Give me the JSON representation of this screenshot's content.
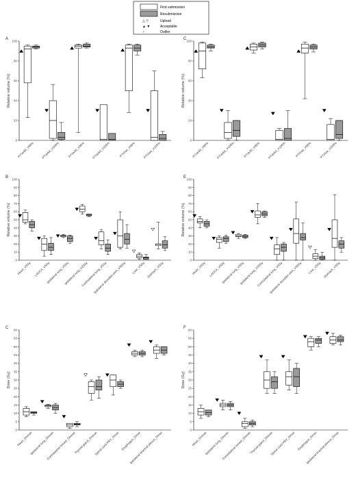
{
  "legend": {
    "items": [
      {
        "key": "first",
        "label": "First submission"
      },
      {
        "key": "resub",
        "label": "Resubmission"
      },
      {
        "key": "upload",
        "label": "Upload",
        "symbol": "△ ▽"
      },
      {
        "key": "accept",
        "label": "Acceptable",
        "symbol": "▲ ▼"
      },
      {
        "key": "outlier",
        "label": "Outlier",
        "symbol": "○"
      }
    ]
  },
  "colors": {
    "first": "#ffffff",
    "resub": "#9a9a9a",
    "stroke": "#000000"
  },
  "chart_data": [
    {
      "panel_label": "A",
      "type": "box",
      "ylabel": "Relative volume (%)",
      "ylim": [
        0,
        100
      ],
      "yticks": [
        0,
        20,
        40,
        60,
        80,
        100
      ],
      "categories": [
        "PTVe66_V95%",
        "PTVe66_V105%",
        "PTVe50_V95%",
        "PTVe50_V105%",
        "PTVtoe_V95%",
        "PTVtoe_V105%"
      ],
      "series": [
        {
          "key": "first",
          "boxes": [
            [
              23,
              58,
              92,
              95,
              96
            ],
            [
              0,
              2,
              20,
              40,
              56
            ],
            [
              8,
              93,
              95,
              96,
              97
            ],
            [
              0,
              0,
              1,
              36,
              36
            ],
            [
              28,
              50,
              93,
              96,
              97
            ],
            [
              0,
              0,
              3,
              50,
              70
            ]
          ]
        },
        {
          "key": "resub",
          "boxes": [
            [
              92,
              93,
              94,
              95,
              96
            ],
            [
              0,
              1,
              3,
              8,
              18
            ],
            [
              93,
              94,
              95,
              97,
              98
            ],
            [
              0,
              0,
              1,
              7,
              7
            ],
            [
              86,
              90,
              93,
              96,
              97
            ],
            [
              0,
              0,
              2,
              6,
              9
            ]
          ]
        }
      ],
      "markers": [
        {
          "cat": 0,
          "type": "accept-up",
          "y": 90
        },
        {
          "cat": 1,
          "type": "accept-down",
          "y": 30
        },
        {
          "cat": 2,
          "type": "accept-up",
          "y": 93
        },
        {
          "cat": 3,
          "type": "accept-down",
          "y": 30
        },
        {
          "cat": 4,
          "type": "accept-up",
          "y": 91
        },
        {
          "cat": 5,
          "type": "accept-down",
          "y": 30
        }
      ]
    },
    {
      "panel_label": "C",
      "type": "box",
      "ylabel": "Relative volume (%)",
      "ylim": [
        0,
        100
      ],
      "yticks": [
        0,
        20,
        40,
        60,
        80,
        100
      ],
      "categories": [
        "PTVe66_V95%",
        "PTVe66_V105%",
        "PTVe50_V95%",
        "PTVe50_V105%",
        "PTVtoe_V95%",
        "PTVtoe_V105%"
      ],
      "series": [
        {
          "key": "first",
          "boxes": [
            [
              63,
              72,
              90,
              98,
              99
            ],
            [
              0,
              2,
              8,
              18,
              30
            ],
            [
              88,
              91,
              94,
              97,
              98
            ],
            [
              0,
              0,
              1,
              10,
              12
            ],
            [
              42,
              88,
              93,
              97,
              99
            ],
            [
              0,
              0,
              1,
              16,
              22
            ]
          ]
        },
        {
          "key": "resub",
          "boxes": [
            [
              90,
              93,
              94,
              96,
              97
            ],
            [
              0,
              4,
              10,
              20,
              20
            ],
            [
              92,
              94,
              96,
              98,
              99
            ],
            [
              0,
              0,
              2,
              12,
              30
            ],
            [
              89,
              92,
              94,
              96,
              97
            ],
            [
              0,
              2,
              6,
              20,
              20
            ]
          ]
        }
      ],
      "markers": [
        {
          "cat": 0,
          "type": "accept-up",
          "y": 90
        },
        {
          "cat": 1,
          "type": "accept-down",
          "y": 30
        },
        {
          "cat": 2,
          "type": "accept-up",
          "y": 93
        },
        {
          "cat": 3,
          "type": "accept-down",
          "y": 27
        },
        {
          "cat": 4,
          "type": "accept-up",
          "y": 90
        },
        {
          "cat": 5,
          "type": "accept-down",
          "y": 30
        }
      ]
    },
    {
      "panel_label": "B",
      "type": "box",
      "ylabel": "Relative volume (%)",
      "ylim": [
        0,
        100
      ],
      "yticks": [
        0,
        10,
        20,
        30,
        40,
        50,
        60,
        70,
        80,
        90,
        100
      ],
      "categories": [
        "Heart_V5Gy",
        "LADCA_V5Gy",
        "Ipsilateral lung_V5Gy",
        "Ipsilateral lung_V20Gy",
        "Contralateral lung_V5Gy",
        "Ipsilateral shoulder joint_V30Gy",
        "Liver_V5Gy",
        "Stomach_V5Gy"
      ],
      "series": [
        {
          "key": "first",
          "boxes": [
            [
              45,
              47,
              50,
              59,
              62
            ],
            [
              5,
              12,
              20,
              27,
              30
            ],
            [
              28,
              29,
              30,
              31,
              32
            ],
            [
              57,
              60,
              63,
              67,
              69
            ],
            [
              14,
              19,
              24,
              35,
              38
            ],
            [
              14,
              16,
              30,
              50,
              60
            ],
            [
              1,
              3,
              5,
              7,
              9
            ],
            [
              14,
              18,
              20,
              20,
              47
            ]
          ]
        },
        {
          "key": "resub",
          "boxes": [
            [
              36,
              40,
              44,
              48,
              50
            ],
            [
              7,
              12,
              16,
              21,
              28
            ],
            [
              21,
              23,
              27,
              30,
              31
            ],
            [
              54,
              55,
              56,
              57,
              57
            ],
            [
              7,
              11,
              15,
              20,
              25
            ],
            [
              15,
              20,
              26,
              33,
              44
            ],
            [
              1,
              1,
              3,
              4,
              7
            ],
            [
              12,
              15,
              19,
              24,
              29
            ]
          ]
        }
      ],
      "markers": [
        {
          "cat": 0,
          "type": "accept-down",
          "y": 55
        },
        {
          "cat": 1,
          "type": "accept-down",
          "y": 27
        },
        {
          "cat": 2,
          "type": "accept-down",
          "y": 30
        },
        {
          "cat": 3,
          "type": "accept-down",
          "y": 63
        },
        {
          "cat": 4,
          "type": "accept-down",
          "y": 27
        },
        {
          "cat": 5,
          "type": "accept-down",
          "y": 33
        },
        {
          "cat": 6,
          "type": "upload-down",
          "y": 11
        },
        {
          "cat": 7,
          "type": "upload-down",
          "y": 38
        }
      ]
    },
    {
      "panel_label": "E",
      "type": "box",
      "ylabel": "Relative volume (%)",
      "ylim": [
        0,
        100
      ],
      "yticks": [
        0,
        10,
        20,
        30,
        40,
        50,
        60,
        70,
        80,
        90,
        100
      ],
      "categories": [
        "Heart_V5Gy",
        "LADCA_V5Gy",
        "Ipsilateral lung_V5Gy",
        "Ipsilateral lung_V20Gy",
        "Contralateral lung_V5Gy",
        "Ipsilateral shoulder joint_V30Gy",
        "Liver_V5Gy",
        "Stomach_V5Gy"
      ],
      "series": [
        {
          "key": "first",
          "boxes": [
            [
              40,
              46,
              48,
              51,
              54
            ],
            [
              15,
              22,
              26,
              28,
              30
            ],
            [
              27,
              29,
              30,
              32,
              33
            ],
            [
              45,
              53,
              56,
              61,
              70
            ],
            [
              0,
              7,
              14,
              19,
              28
            ],
            [
              0,
              21,
              33,
              51,
              72
            ],
            [
              0,
              2,
              5,
              8,
              13
            ],
            [
              0,
              16,
              27,
              50,
              81
            ]
          ]
        },
        {
          "key": "resub",
          "boxes": [
            [
              40,
              42,
              45,
              48,
              50
            ],
            [
              21,
              23,
              27,
              29,
              31
            ],
            [
              27,
              28,
              29,
              31,
              32
            ],
            [
              53,
              55,
              57,
              60,
              61
            ],
            [
              0,
              11,
              16,
              20,
              22
            ],
            [
              0,
              25,
              28,
              33,
              46
            ],
            [
              0,
              1,
              3,
              5,
              10
            ],
            [
              10,
              15,
              20,
              24,
              28
            ]
          ]
        }
      ],
      "markers": [
        {
          "cat": 0,
          "type": "accept-down",
          "y": 55
        },
        {
          "cat": 1,
          "type": "accept-down",
          "y": 27
        },
        {
          "cat": 2,
          "type": "accept-down",
          "y": 34
        },
        {
          "cat": 3,
          "type": "accept-down",
          "y": 60
        },
        {
          "cat": 4,
          "type": "accept-down",
          "y": 27
        },
        {
          "cat": 5,
          "type": "accept-down",
          "y": 38
        },
        {
          "cat": 6,
          "type": "upload-down",
          "y": 16
        },
        {
          "cat": 7,
          "type": "accept-down",
          "y": 38
        }
      ]
    },
    {
      "panel_label": "C",
      "type": "box",
      "ylabel": "Dose (Gy)",
      "ylim": [
        0,
        60
      ],
      "yticks": [
        0,
        5,
        10,
        15,
        20,
        25,
        30,
        35,
        40,
        45,
        50,
        55,
        60
      ],
      "categories": [
        "Heart_Dmean",
        "Ipsilateral lung_Dmean",
        "Contralateral breast_Dmean",
        "Thyroid gland_Dmean",
        "Spinal cord PRV_Dmax",
        "Esophagus_Dmax",
        "Ipsilateral brachial plexus_Dmax"
      ],
      "series": [
        {
          "key": "first",
          "boxes": [
            [
              8,
              9,
              11,
              13,
              14
            ],
            [
              13,
              14,
              14.5,
              15,
              15.5
            ],
            [
              1,
              2,
              3,
              4,
              4
            ],
            [
              18,
              22,
              26,
              29,
              30
            ],
            [
              21,
              26,
              30,
              33,
              33
            ],
            [
              44,
              45,
              46,
              47,
              48
            ],
            [
              43,
              46,
              48,
              50,
              51
            ]
          ]
        },
        {
          "key": "resub",
          "boxes": [
            [
              9,
              10,
              10.5,
              11,
              11
            ],
            [
              10,
              12,
              13.5,
              15,
              16
            ],
            [
              2,
              3,
              3.5,
              4,
              5
            ],
            [
              19,
              24,
              26,
              30,
              32
            ],
            [
              25,
              26,
              27.5,
              29,
              30
            ],
            [
              44,
              45,
              46,
              47,
              48
            ],
            [
              45,
              46,
              48,
              50,
              50
            ]
          ]
        }
      ],
      "markers": [
        {
          "cat": 1,
          "type": "accept-down",
          "y": 17
        },
        {
          "cat": 2,
          "type": "accept-down",
          "y": 8
        },
        {
          "cat": 3,
          "type": "upload-down",
          "y": 33
        },
        {
          "cat": 4,
          "type": "accept-down",
          "y": 33
        },
        {
          "cat": 5,
          "type": "accept-down",
          "y": 51
        },
        {
          "cat": 6,
          "type": "accept-down",
          "y": 53
        }
      ]
    },
    {
      "panel_label": "F",
      "type": "box",
      "ylabel": "Dose (Gy)",
      "ylim": [
        0,
        60
      ],
      "yticks": [
        0,
        5,
        10,
        15,
        20,
        25,
        30,
        35,
        40,
        45,
        50,
        55,
        60
      ],
      "categories": [
        "Heart_Dmean",
        "Ipsilateral lung_Dmean",
        "Contralateral breast_Dmean",
        "Thyroid gland_Dmean",
        "Spinal cord PRV_Dmax",
        "Esophagus_Dmax",
        "Ipsilateral brachial plexus_Dmax"
      ],
      "series": [
        {
          "key": "first",
          "boxes": [
            [
              7,
              9,
              11,
              13,
              15
            ],
            [
              12,
              14,
              15,
              16,
              18
            ],
            [
              1,
              2,
              4,
              5,
              7
            ],
            [
              22,
              25,
              30,
              35,
              42
            ],
            [
              24,
              27,
              32,
              35,
              42
            ],
            [
              48,
              50,
              53,
              55,
              56
            ],
            [
              51,
              52,
              54,
              56,
              58
            ]
          ]
        },
        {
          "key": "resub",
          "boxes": [
            [
              8,
              9,
              10.5,
              12,
              12
            ],
            [
              12,
              14,
              15,
              16,
              17
            ],
            [
              2,
              3,
              4,
              5,
              6
            ],
            [
              22,
              25,
              29,
              32,
              35
            ],
            [
              22,
              26,
              32,
              37,
              40
            ],
            [
              50,
              52,
              54,
              55,
              56
            ],
            [
              51,
              53,
              54,
              56,
              57
            ]
          ]
        }
      ],
      "markers": [
        {
          "cat": 1,
          "type": "accept-down",
          "y": 18
        },
        {
          "cat": 2,
          "type": "accept-down",
          "y": 10
        },
        {
          "cat": 3,
          "type": "accept-down",
          "y": 44
        },
        {
          "cat": 4,
          "type": "accept-down",
          "y": 44
        },
        {
          "cat": 5,
          "type": "accept-down",
          "y": 56
        },
        {
          "cat": 6,
          "type": "accept-down",
          "y": 58
        }
      ]
    }
  ]
}
